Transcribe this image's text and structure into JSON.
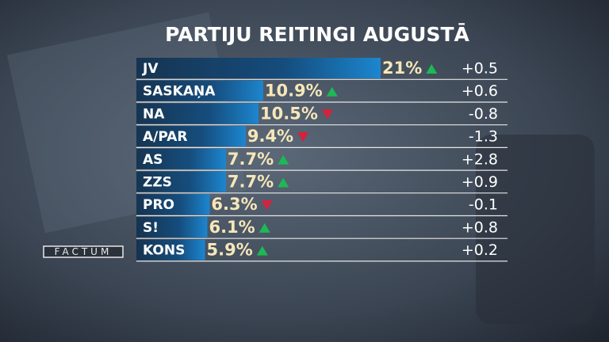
{
  "chart_data": {
    "type": "bar",
    "title": "PARTIJU REITINGI AUGUSTĀ",
    "categories": [
      "JV",
      "SASKAŅA",
      "NA",
      "A/PAR",
      "AS",
      "ZZS",
      "PRO",
      "S!",
      "KONS"
    ],
    "values": [
      21,
      10.9,
      10.5,
      9.4,
      7.7,
      7.7,
      6.3,
      6.1,
      5.9
    ],
    "value_labels": [
      "21%",
      "10.9%",
      "10.5%",
      "9.4%",
      "7.7%",
      "7.7%",
      "6.3%",
      "6.1%",
      "5.9%"
    ],
    "changes": [
      0.5,
      0.6,
      -0.8,
      -1.3,
      2.8,
      0.9,
      -0.1,
      0.8,
      0.2
    ],
    "change_labels": [
      "+0.5",
      "+0.6",
      "-0.8",
      "-1.3",
      "+2.8",
      "+0.9",
      "-0.1",
      "+0.8",
      "+0.2"
    ],
    "up_color": "#1db954",
    "down_color": "#d6213a",
    "logo": "FACTUM"
  }
}
